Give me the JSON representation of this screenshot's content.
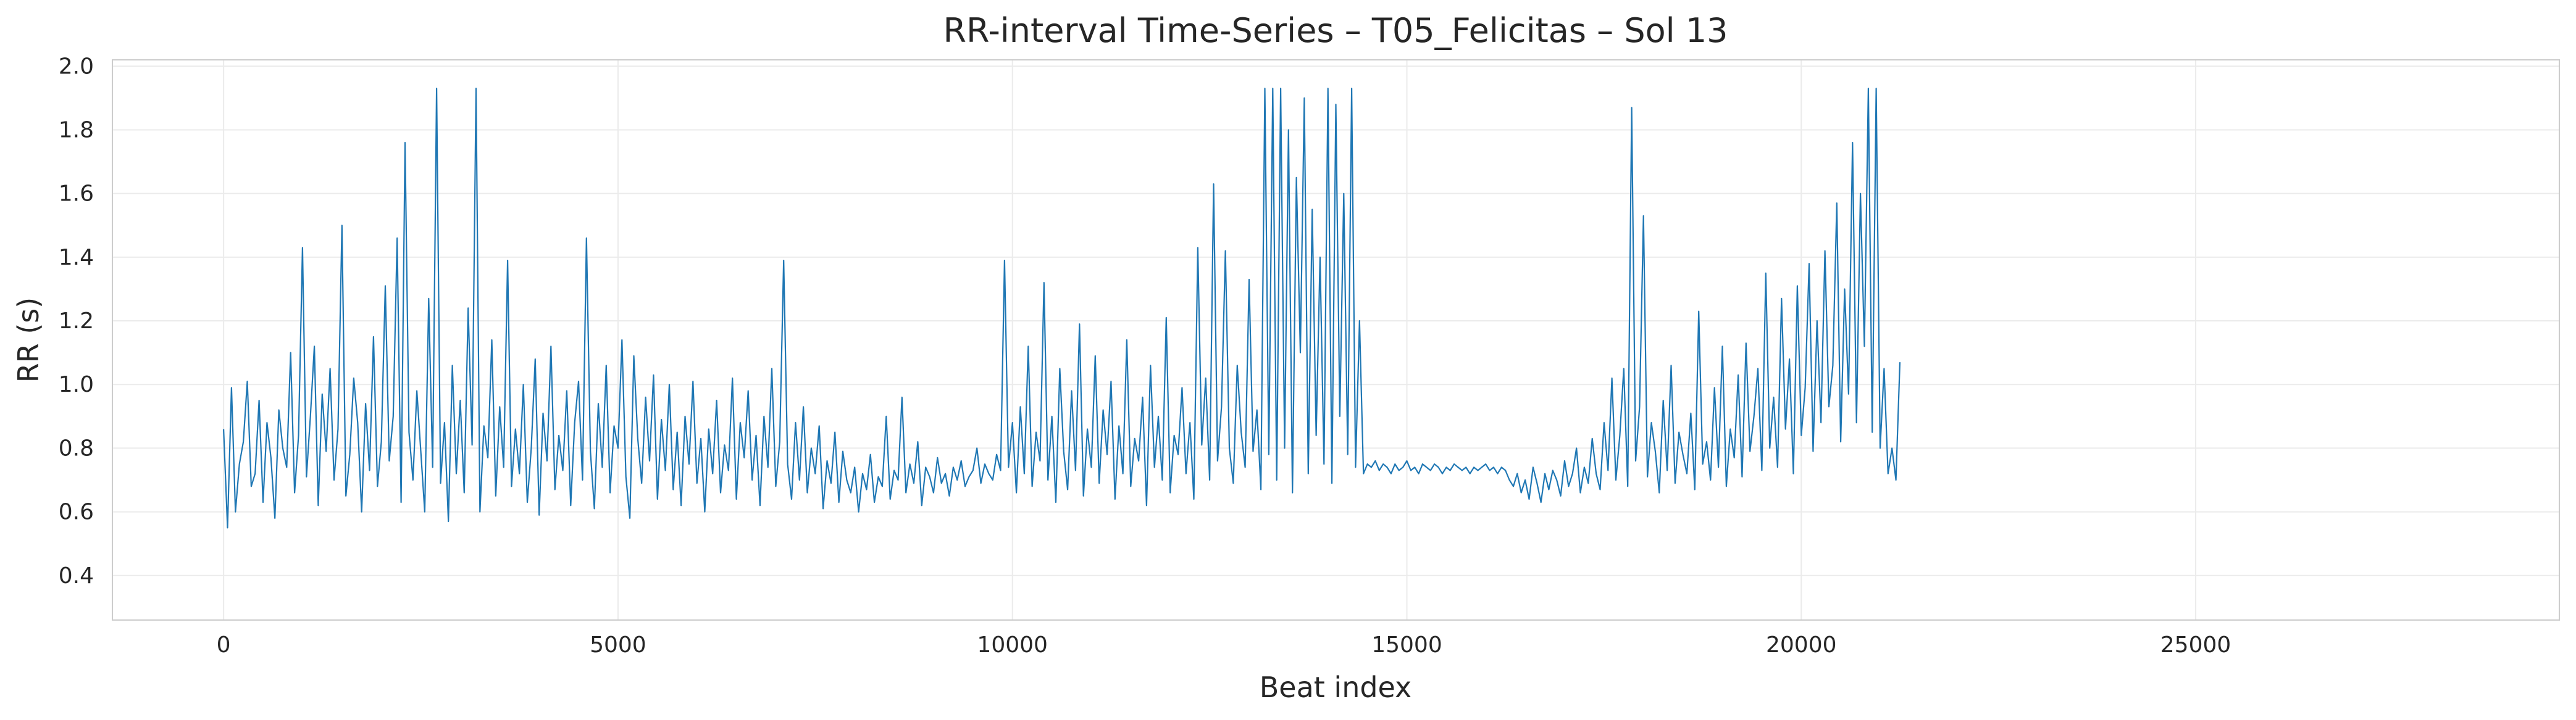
{
  "chart_data": {
    "type": "line",
    "title": "RR-interval Time-Series – T05_Felicitas – Sol 13",
    "xlabel": "Beat index",
    "ylabel": "RR (s)",
    "xlim": [
      -1410,
      29610
    ],
    "ylim": [
      0.26,
      2.02
    ],
    "x_ticks": [
      0,
      5000,
      10000,
      15000,
      20000,
      25000
    ],
    "y_ticks": [
      0.4,
      0.6,
      0.8,
      1.0,
      1.2,
      1.4,
      1.6,
      1.8,
      2.0
    ],
    "x_tick_labels": [
      "0",
      "5000",
      "10000",
      "15000",
      "20000",
      "25000"
    ],
    "y_tick_labels": [
      "0.4",
      "0.6",
      "0.8",
      "1.0",
      "1.2",
      "1.4",
      "1.6",
      "1.8",
      "2.0"
    ],
    "grid": true,
    "line_color": "#1f77b4",
    "series": [
      {
        "x_start": 0,
        "x_step": 50,
        "values": [
          0.86,
          0.55,
          0.99,
          0.6,
          0.75,
          0.82,
          1.01,
          0.68,
          0.72,
          0.95,
          0.63,
          0.88,
          0.77,
          0.58,
          0.92,
          0.8,
          0.74,
          1.1,
          0.66,
          0.84,
          1.43,
          0.71,
          0.9,
          1.12,
          0.62,
          0.97,
          0.79,
          1.05,
          0.7,
          0.86,
          1.5,
          0.65,
          0.78,
          1.02,
          0.88,
          0.6,
          0.94,
          0.73,
          1.15,
          0.68,
          0.82,
          1.31,
          0.76,
          0.9,
          1.46,
          0.63,
          1.76,
          0.85,
          0.7,
          0.98,
          0.79,
          0.6,
          1.27,
          0.74,
          1.93,
          0.69,
          0.88,
          0.57,
          1.06,
          0.72,
          0.95,
          0.66,
          1.24,
          0.81,
          1.93,
          0.6,
          0.87,
          0.77,
          1.14,
          0.65,
          0.93,
          0.74,
          1.39,
          0.68,
          0.86,
          0.72,
          1.0,
          0.63,
          0.8,
          1.08,
          0.59,
          0.91,
          0.76,
          1.12,
          0.67,
          0.84,
          0.73,
          0.98,
          0.62,
          0.88,
          1.01,
          0.7,
          1.46,
          0.79,
          0.61,
          0.94,
          0.74,
          1.06,
          0.66,
          0.87,
          0.8,
          1.14,
          0.71,
          0.58,
          1.09,
          0.83,
          0.69,
          0.96,
          0.76,
          1.03,
          0.64,
          0.89,
          0.73,
          1.0,
          0.67,
          0.85,
          0.62,
          0.9,
          0.75,
          1.01,
          0.69,
          0.83,
          0.6,
          0.86,
          0.72,
          0.95,
          0.66,
          0.81,
          0.73,
          1.02,
          0.64,
          0.88,
          0.77,
          0.98,
          0.7,
          0.84,
          0.62,
          0.9,
          0.74,
          1.05,
          0.68,
          0.82,
          1.39,
          0.75,
          0.64,
          0.88,
          0.7,
          0.93,
          0.66,
          0.8,
          0.72,
          0.87,
          0.61,
          0.76,
          0.69,
          0.85,
          0.63,
          0.79,
          0.7,
          0.66,
          0.74,
          0.6,
          0.72,
          0.67,
          0.78,
          0.63,
          0.71,
          0.68,
          0.9,
          0.64,
          0.73,
          0.7,
          0.96,
          0.66,
          0.75,
          0.69,
          0.82,
          0.62,
          0.74,
          0.71,
          0.66,
          0.77,
          0.69,
          0.72,
          0.65,
          0.74,
          0.7,
          0.76,
          0.68,
          0.71,
          0.73,
          0.8,
          0.69,
          0.75,
          0.72,
          0.7,
          0.78,
          0.73,
          1.39,
          0.74,
          0.88,
          0.66,
          0.93,
          0.72,
          1.12,
          0.68,
          0.85,
          0.76,
          1.32,
          0.7,
          0.9,
          0.63,
          1.05,
          0.79,
          0.67,
          0.98,
          0.73,
          1.19,
          0.65,
          0.86,
          0.74,
          1.09,
          0.69,
          0.92,
          0.78,
          1.01,
          0.64,
          0.87,
          0.72,
          1.14,
          0.68,
          0.83,
          0.76,
          0.96,
          0.62,
          1.06,
          0.74,
          0.9,
          0.7,
          1.21,
          0.66,
          0.84,
          0.78,
          0.99,
          0.72,
          0.88,
          0.64,
          1.43,
          0.81,
          1.02,
          0.7,
          1.63,
          0.76,
          0.93,
          1.42,
          0.8,
          0.69,
          1.06,
          0.85,
          0.74,
          1.33,
          0.79,
          0.92,
          0.67,
          1.93,
          0.78,
          1.93,
          0.7,
          1.93,
          0.8,
          1.8,
          0.66,
          1.65,
          1.1,
          1.9,
          0.72,
          1.55,
          0.84,
          1.4,
          0.75,
          1.93,
          0.69,
          1.88,
          0.9,
          1.6,
          0.78,
          1.93,
          0.74,
          1.2,
          0.72,
          0.75,
          0.74,
          0.76,
          0.73,
          0.75,
          0.74,
          0.72,
          0.75,
          0.73,
          0.74,
          0.76,
          0.73,
          0.74,
          0.72,
          0.75,
          0.74,
          0.73,
          0.75,
          0.74,
          0.72,
          0.74,
          0.73,
          0.75,
          0.74,
          0.73,
          0.74,
          0.72,
          0.74,
          0.73,
          0.74,
          0.75,
          0.73,
          0.74,
          0.72,
          0.74,
          0.73,
          0.7,
          0.68,
          0.72,
          0.66,
          0.7,
          0.64,
          0.74,
          0.69,
          0.63,
          0.72,
          0.67,
          0.73,
          0.7,
          0.65,
          0.76,
          0.68,
          0.72,
          0.8,
          0.66,
          0.74,
          0.69,
          0.83,
          0.72,
          0.67,
          0.88,
          0.73,
          1.02,
          0.7,
          0.84,
          1.05,
          0.68,
          1.87,
          0.76,
          0.93,
          1.53,
          0.71,
          0.88,
          0.79,
          0.66,
          0.95,
          0.73,
          1.06,
          0.69,
          0.85,
          0.78,
          0.72,
          0.91,
          0.67,
          1.23,
          0.75,
          0.82,
          0.7,
          0.99,
          0.74,
          1.12,
          0.68,
          0.86,
          0.77,
          1.03,
          0.71,
          1.13,
          0.79,
          0.9,
          1.05,
          0.73,
          1.35,
          0.8,
          0.96,
          0.74,
          1.27,
          0.86,
          1.08,
          0.72,
          1.31,
          0.84,
          0.99,
          1.38,
          0.79,
          1.2,
          0.88,
          1.42,
          0.93,
          1.06,
          1.57,
          0.82,
          1.3,
          0.97,
          1.76,
          0.88,
          1.6,
          1.12,
          1.93,
          0.85,
          1.93,
          0.8,
          1.05,
          0.72,
          0.8,
          0.7,
          1.07
        ]
      }
    ]
  }
}
